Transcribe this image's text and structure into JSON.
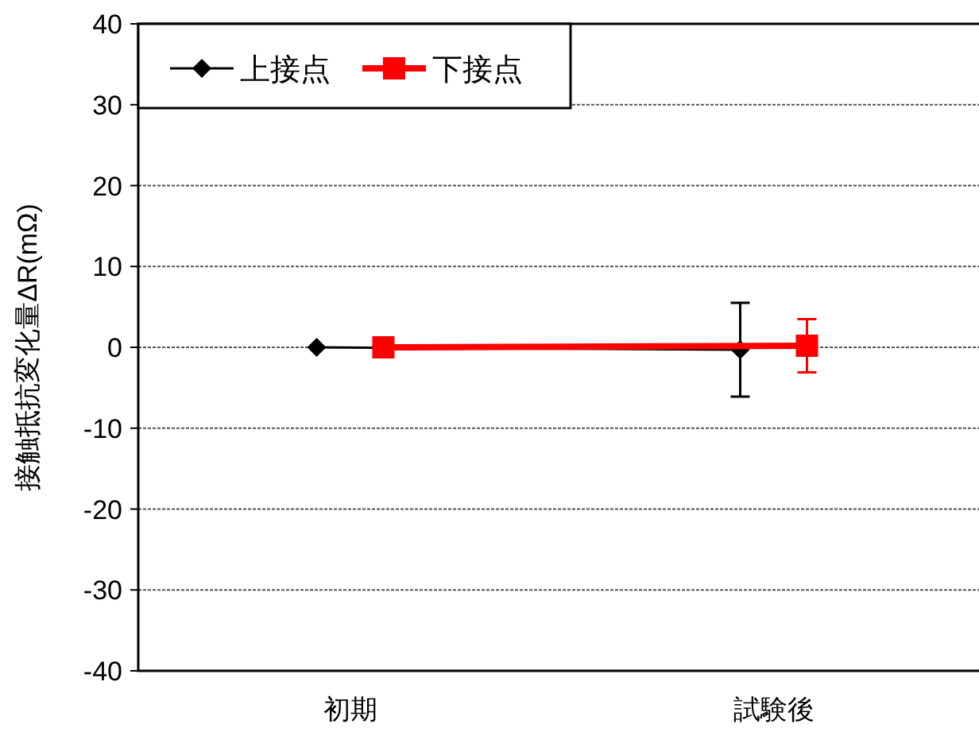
{
  "chart_data": {
    "type": "line",
    "ylabel": "接触抵抗変化量ΔR(mΩ)",
    "categories": [
      "初期",
      "試験後"
    ],
    "series": [
      {
        "name": "上接点",
        "color": "#000000",
        "values": [
          0,
          -0.3
        ],
        "errors": [
          null,
          5.8
        ],
        "marker": "diamond"
      },
      {
        "name": "下接点",
        "color": "#ff0000",
        "values": [
          0,
          0.2
        ],
        "errors": [
          null,
          3.3
        ],
        "marker": "square"
      }
    ],
    "ylim": [
      -40,
      40
    ],
    "yticks": [
      -40,
      -30,
      -20,
      -10,
      0,
      10,
      20,
      30,
      40
    ],
    "grid": "y",
    "legend": "top left"
  }
}
